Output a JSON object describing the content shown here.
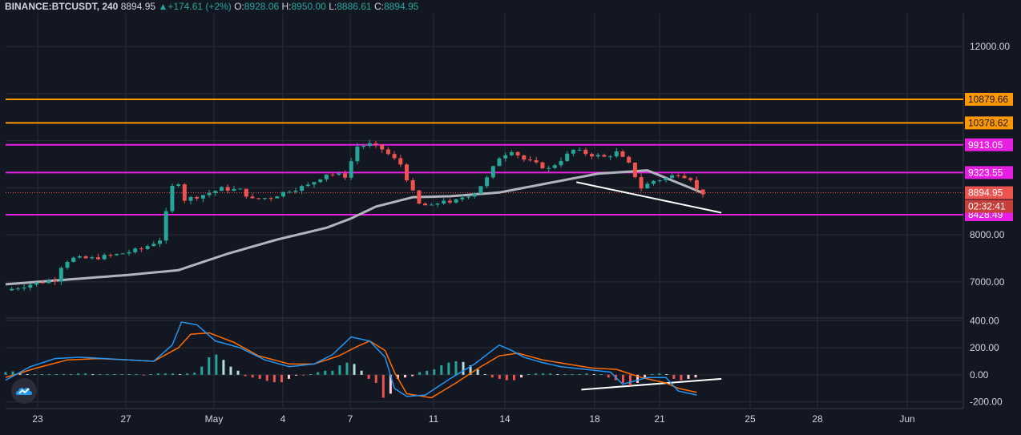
{
  "header": {
    "symbol": "BINANCE:BTCUSDT, 240",
    "last": "8894.95",
    "arrow": "▲",
    "change": "+174.61 (+2%)",
    "o_label": "O:",
    "o_value": "8928.06",
    "h_label": "H:",
    "h_value": "8950.00",
    "l_label": "L:",
    "l_value": "8886.61",
    "c_label": "C:",
    "c_value": "8894.95"
  },
  "colors": {
    "background": "#131722",
    "up": "#26a69a",
    "down": "#ef5350",
    "orange_line": "#ff9800",
    "magenta_line": "#e91ee3",
    "ma_line": "#b2b5be",
    "macd_line": "#2196f3",
    "signal_line": "#ff6d00",
    "trendline": "#ffffff"
  },
  "chart_data": {
    "type": "candlestick",
    "x_ticks": [
      "23",
      "27",
      "May",
      "4",
      "7",
      "11",
      "14",
      "18",
      "21",
      "25",
      "28",
      "Jun"
    ],
    "price_axis": {
      "ticks": [
        "12000.00",
        "8000.00",
        "7000.00"
      ],
      "ylim": [
        6250,
        12700
      ]
    },
    "horizontal_levels": [
      {
        "value": 10879.66,
        "label": "10879.66",
        "color": "orange"
      },
      {
        "value": 10378.62,
        "label": "10378.62",
        "color": "orange"
      },
      {
        "value": 9913.05,
        "label": "9913.05",
        "color": "magenta"
      },
      {
        "value": 9323.55,
        "label": "9323.55",
        "color": "magenta"
      },
      {
        "value": 8428.49,
        "label": "8428.49",
        "color": "magenta"
      }
    ],
    "last_price": {
      "value": 8894.95,
      "label": "8894.95",
      "countdown": "02:32:41"
    },
    "price_path": [
      [
        0,
        6820
      ],
      [
        4,
        6950
      ],
      [
        8,
        7050
      ],
      [
        9.3,
        7420
      ],
      [
        11,
        7500
      ],
      [
        14,
        7500
      ],
      [
        18,
        7580
      ],
      [
        22,
        7700
      ],
      [
        25,
        7900
      ],
      [
        27.5,
        9300
      ],
      [
        29,
        8750
      ],
      [
        32,
        8850
      ],
      [
        35,
        8980
      ],
      [
        38,
        8950
      ],
      [
        40,
        8750
      ],
      [
        43,
        8800
      ],
      [
        46,
        8950
      ],
      [
        49,
        9050
      ],
      [
        52,
        9300
      ],
      [
        55,
        9250
      ],
      [
        57,
        9880
      ],
      [
        59,
        9920
      ],
      [
        61,
        9820
      ],
      [
        64,
        9500
      ],
      [
        66,
        8900
      ],
      [
        67,
        8650
      ],
      [
        69,
        8600
      ],
      [
        71,
        8750
      ],
      [
        72,
        8650
      ],
      [
        74,
        8800
      ],
      [
        76,
        8900
      ],
      [
        78,
        9200
      ],
      [
        80,
        9650
      ],
      [
        82,
        9800
      ],
      [
        84,
        9600
      ],
      [
        86,
        9500
      ],
      [
        88,
        9400
      ],
      [
        90,
        9600
      ],
      [
        92,
        9800
      ],
      [
        95,
        9700
      ],
      [
        97,
        9650
      ],
      [
        99,
        9750
      ],
      [
        101,
        9500
      ],
      [
        103,
        9000
      ],
      [
        105,
        9150
      ],
      [
        107,
        9200
      ],
      [
        109,
        9300
      ],
      [
        111,
        9200
      ],
      [
        112,
        8950
      ],
      [
        113,
        8890
      ]
    ],
    "ma_path": [
      [
        0,
        6950
      ],
      [
        10,
        7050
      ],
      [
        20,
        7150
      ],
      [
        28,
        7250
      ],
      [
        36,
        7600
      ],
      [
        44,
        7900
      ],
      [
        52,
        8150
      ],
      [
        56,
        8350
      ],
      [
        60,
        8600
      ],
      [
        66,
        8800
      ],
      [
        72,
        8820
      ],
      [
        80,
        8900
      ],
      [
        88,
        9100
      ],
      [
        96,
        9300
      ],
      [
        104,
        9370
      ],
      [
        113,
        8890
      ]
    ],
    "trendline_price": [
      [
        92.5,
        9120
      ],
      [
        116,
        8470
      ]
    ],
    "macd_axis": {
      "ticks": [
        "400.00",
        "200.00",
        "0.00",
        "-200.00"
      ],
      "ylim": [
        -250,
        420
      ]
    },
    "macd_path": [
      [
        0,
        -40
      ],
      [
        4,
        60
      ],
      [
        8,
        120
      ],
      [
        12,
        130
      ],
      [
        16,
        120
      ],
      [
        20,
        110
      ],
      [
        24,
        100
      ],
      [
        27,
        220
      ],
      [
        28.5,
        390
      ],
      [
        31,
        370
      ],
      [
        34,
        250
      ],
      [
        38,
        200
      ],
      [
        42,
        110
      ],
      [
        46,
        60
      ],
      [
        50,
        80
      ],
      [
        53,
        150
      ],
      [
        56,
        280
      ],
      [
        59,
        250
      ],
      [
        61.5,
        130
      ],
      [
        63,
        -100
      ],
      [
        65,
        -160
      ],
      [
        68,
        -150
      ],
      [
        72,
        -30
      ],
      [
        76,
        80
      ],
      [
        80,
        220
      ],
      [
        82,
        180
      ],
      [
        84,
        130
      ],
      [
        87,
        90
      ],
      [
        90,
        60
      ],
      [
        94,
        40
      ],
      [
        98,
        20
      ],
      [
        100,
        -70
      ],
      [
        104,
        -20
      ],
      [
        107,
        -20
      ],
      [
        109,
        -120
      ],
      [
        112,
        -150
      ]
    ],
    "signal_path": [
      [
        0,
        -20
      ],
      [
        5,
        50
      ],
      [
        10,
        110
      ],
      [
        15,
        120
      ],
      [
        20,
        110
      ],
      [
        24,
        100
      ],
      [
        28,
        200
      ],
      [
        30,
        300
      ],
      [
        33,
        310
      ],
      [
        37,
        240
      ],
      [
        41,
        140
      ],
      [
        46,
        80
      ],
      [
        50,
        80
      ],
      [
        54,
        140
      ],
      [
        57,
        210
      ],
      [
        59,
        250
      ],
      [
        61.5,
        180
      ],
      [
        63,
        20
      ],
      [
        65,
        -140
      ],
      [
        69,
        -170
      ],
      [
        73,
        -60
      ],
      [
        77,
        60
      ],
      [
        80,
        140
      ],
      [
        83,
        160
      ],
      [
        87,
        110
      ],
      [
        91,
        80
      ],
      [
        95,
        50
      ],
      [
        99,
        40
      ],
      [
        103,
        -20
      ],
      [
        107,
        -60
      ],
      [
        109,
        -100
      ],
      [
        112,
        -130
      ]
    ],
    "histogram_values": [
      20,
      25,
      10,
      5,
      5,
      5,
      5,
      5,
      5,
      5,
      10,
      10,
      5,
      5,
      5,
      5,
      5,
      5,
      5,
      -5,
      5,
      10,
      10,
      10,
      5,
      10,
      15,
      60,
      130,
      150,
      110,
      60,
      30,
      -10,
      -20,
      -30,
      -45,
      -55,
      -55,
      -30,
      -5,
      -5,
      5,
      20,
      30,
      30,
      70,
      90,
      80,
      30,
      -30,
      -60,
      -170,
      -140,
      -30,
      -20,
      -10,
      20,
      30,
      40,
      70,
      90,
      100,
      95,
      70,
      40,
      5,
      -20,
      -30,
      -40,
      -40,
      -20,
      5,
      10,
      10,
      10,
      5,
      5,
      5,
      5,
      10,
      5,
      5,
      -20,
      -40,
      -60,
      -80,
      -60,
      -20,
      5,
      10,
      5,
      -30,
      -40,
      -30,
      -20
    ],
    "trendline_macd": [
      [
        93.3,
        -110
      ],
      [
        116,
        -30
      ]
    ]
  }
}
